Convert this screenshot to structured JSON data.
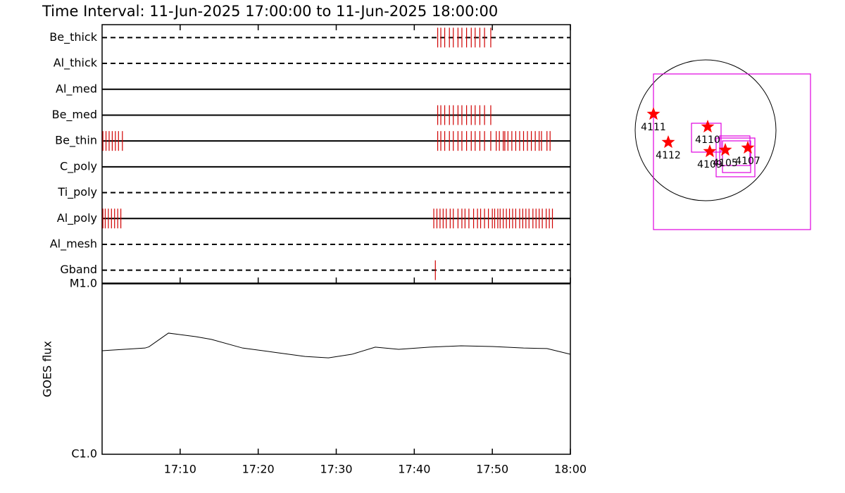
{
  "chart_data": [
    {
      "type": "timeline",
      "title": "Time Interval: 11-Jun-2025 17:00:00 to 11-Jun-2025 18:00:00",
      "categories": [
        "Be_thick",
        "Al_thick",
        "Al_med",
        "Be_med",
        "Be_thin",
        "C_poly",
        "Ti_poly",
        "Al_poly",
        "Al_mesh",
        "Gband"
      ],
      "line_styles": [
        "dashed",
        "dashed",
        "solid",
        "solid",
        "solid",
        "solid",
        "dashed",
        "solid",
        "dashed",
        "dashed"
      ],
      "color": "#d00000",
      "xlim": [
        0,
        60
      ],
      "events": [
        [
          43.0,
          43.4,
          43.9,
          44.5,
          45.0,
          45.6,
          46.1,
          46.7,
          47.3,
          47.8,
          48.4,
          49.0,
          49.8
        ],
        [],
        [],
        [
          43.0,
          43.4,
          43.9,
          44.5,
          45.0,
          45.6,
          46.1,
          46.7,
          47.3,
          47.8,
          48.4,
          49.0,
          49.8
        ],
        [
          0.1,
          0.5,
          0.9,
          1.3,
          1.7,
          2.1,
          2.6,
          43.0,
          43.4,
          43.9,
          44.5,
          45.0,
          45.6,
          46.1,
          46.7,
          47.3,
          47.8,
          48.4,
          49.0,
          49.8,
          50.5,
          50.9,
          51.4,
          51.6,
          52.0,
          52.5,
          53.0,
          53.5,
          54.0,
          54.5,
          55.0,
          55.5,
          56.0,
          56.3,
          57.0,
          57.4
        ],
        [],
        [],
        [
          0.1,
          0.4,
          0.8,
          1.2,
          1.6,
          2.0,
          2.4,
          42.5,
          42.9,
          43.3,
          43.7,
          44.1,
          44.6,
          45.0,
          45.6,
          46.1,
          46.5,
          47.0,
          47.6,
          48.1,
          48.5,
          49.0,
          49.5,
          50.0,
          50.3,
          50.7,
          51.0,
          51.4,
          51.8,
          52.2,
          52.6,
          53.0,
          53.5,
          53.9,
          54.3,
          54.7,
          55.2,
          55.6,
          56.0,
          56.4,
          56.9,
          57.3,
          57.7
        ],
        [],
        [
          42.7
        ]
      ]
    },
    {
      "type": "line",
      "ylabel": "GOES flux",
      "log_y": true,
      "color": "#000000",
      "x": [
        0,
        5.5,
        6,
        8.5,
        12,
        14,
        18,
        22,
        26,
        29,
        32,
        35,
        38,
        42,
        46,
        50,
        54,
        57,
        60
      ],
      "values": [
        4.05e-06,
        4.2e-06,
        4.27e-06,
        5.14e-06,
        4.9e-06,
        4.72e-06,
        4.2e-06,
        3.97e-06,
        3.75e-06,
        3.68e-06,
        3.86e-06,
        4.25e-06,
        4.13e-06,
        4.25e-06,
        4.33e-06,
        4.29e-06,
        4.2e-06,
        4.17e-06,
        3.86e-06
      ],
      "xlim": [
        0,
        60
      ],
      "xticks": [
        {
          "value": 10,
          "label": "17:10"
        },
        {
          "value": 20,
          "label": "17:20"
        },
        {
          "value": 30,
          "label": "17:30"
        },
        {
          "value": 40,
          "label": "17:40"
        },
        {
          "value": 50,
          "label": "17:50"
        },
        {
          "value": 60,
          "label": "18:00"
        }
      ],
      "ylim": [
        1e-06,
        1e-05
      ],
      "yticks": [
        {
          "value": 1e-06,
          "label": "C1.0"
        },
        {
          "value": 1e-05,
          "label": "M1.0"
        }
      ]
    },
    {
      "type": "scatter",
      "color": "#ff0000",
      "fov_color": "#e000e0",
      "labels": [
        "4111",
        "4112",
        "4110",
        "4109",
        "4105",
        "4107"
      ],
      "x": [
        -0.74,
        -0.53,
        0.03,
        0.06,
        0.28,
        0.6
      ],
      "values": [
        0.23,
        -0.17,
        0.05,
        -0.3,
        -0.28,
        -0.25
      ],
      "fovs": [
        [
          -0.74,
          -1.41,
          1.49,
          0.8
        ],
        [
          -0.2,
          -0.31,
          0.22,
          0.1
        ],
        [
          0.2,
          -0.5,
          0.63,
          -0.08
        ],
        [
          0.15,
          -0.66,
          0.7,
          -0.11
        ],
        [
          0.24,
          -0.6,
          0.64,
          -0.15
        ]
      ]
    }
  ]
}
